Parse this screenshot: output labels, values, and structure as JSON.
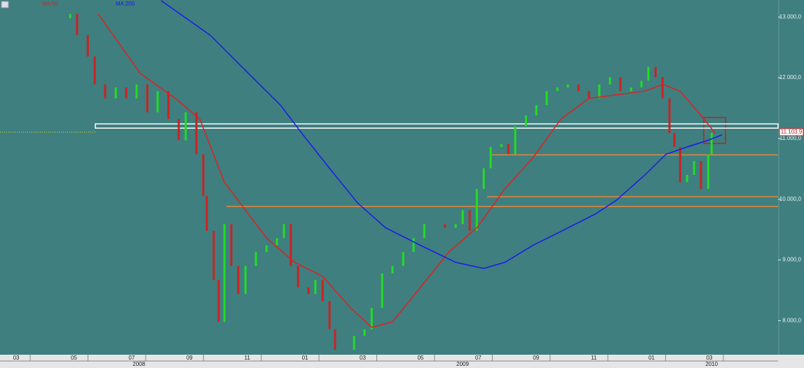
{
  "chart_data": {
    "type": "stock",
    "xlim": [
      1.44,
      28.38
    ],
    "ylim": [
      7440,
      13280
    ],
    "xticks": [
      {
        "value": 2,
        "label": "03"
      },
      {
        "value": 4,
        "label": "05"
      },
      {
        "value": 6,
        "label": "07"
      },
      {
        "value": 8,
        "label": "09"
      },
      {
        "value": 10,
        "label": "11"
      },
      {
        "value": 12,
        "label": "01"
      },
      {
        "value": 14,
        "label": "03"
      },
      {
        "value": 16,
        "label": "05"
      },
      {
        "value": 18,
        "label": "07"
      },
      {
        "value": 20,
        "label": "09"
      },
      {
        "value": 22,
        "label": "11"
      },
      {
        "value": 24,
        "label": "01"
      },
      {
        "value": 26,
        "label": "03"
      }
    ],
    "year_ticks": [
      {
        "value": 6.25,
        "label": "2008"
      },
      {
        "value": 17.46,
        "label": "2009"
      },
      {
        "value": 26.08,
        "label": "2010"
      }
    ],
    "yticks": [
      {
        "value": 8000,
        "label": "8.000,0"
      },
      {
        "value": 9000,
        "label": "9.000,0"
      },
      {
        "value": 10000,
        "label": "10.000,0"
      },
      {
        "value": 11000,
        "label": "11.000,0"
      },
      {
        "value": 12000,
        "label": "12.000,0"
      },
      {
        "value": 13000,
        "label": "13.000,0"
      }
    ],
    "price": {
      "up_color": "#22dd22",
      "down_color": "#cc2222",
      "x": [
        3.87,
        4.11,
        4.48,
        4.72,
        5.08,
        5.45,
        5.81,
        6.17,
        6.54,
        6.9,
        7.27,
        7.63,
        7.87,
        8.24,
        8.48,
        8.6,
        8.84,
        9.01,
        9.21,
        9.45,
        9.69,
        9.94,
        10.3,
        10.67,
        11.03,
        11.27,
        11.51,
        11.76,
        12.12,
        12.36,
        12.61,
        12.85,
        13.04,
        13.33,
        13.7,
        14.06,
        14.31,
        14.67,
        15.03,
        15.4,
        15.76,
        16.13,
        16.49,
        16.85,
        17.22,
        17.46,
        17.7,
        17.95,
        18.19,
        18.43,
        18.8,
        19.04,
        19.28,
        19.65,
        20.01,
        20.37,
        20.74,
        21.1,
        21.47,
        21.83,
        22.19,
        22.56,
        22.92,
        23.29,
        23.65,
        23.89,
        24.14,
        24.38,
        24.62,
        24.79,
        24.99,
        25.23,
        25.47,
        25.71,
        25.96,
        26.08,
        26.32
      ],
      "values": [
        13050,
        12700,
        12350,
        11890,
        11660,
        11840,
        11660,
        11890,
        11430,
        11780,
        11320,
        10970,
        11430,
        10740,
        10050,
        9480,
        8670,
        7980,
        9590,
        8900,
        8440,
        8900,
        9130,
        9240,
        9360,
        9590,
        8900,
        8550,
        8440,
        8670,
        8320,
        7860,
        7520,
        7520,
        7750,
        7860,
        8210,
        8780,
        8900,
        9130,
        9360,
        9590,
        9590,
        9530,
        9590,
        9820,
        9480,
        10170,
        10510,
        10860,
        10910,
        10740,
        11200,
        11380,
        11550,
        11780,
        11840,
        11890,
        11780,
        11660,
        11890,
        12010,
        11780,
        11840,
        11950,
        12180,
        12010,
        11660,
        11090,
        10860,
        10280,
        10400,
        10630,
        10170,
        10740,
        11090,
        11090
      ]
    },
    "series": [
      {
        "name": "MA 50",
        "color": "#e02020",
        "x": [
          4.84,
          6.3,
          7.51,
          8.36,
          9.21,
          10.67,
          11.64,
          12.61,
          13.58,
          14.31,
          15.03,
          16.0,
          16.98,
          17.95,
          18.92,
          19.89,
          20.86,
          21.83,
          22.8,
          23.77,
          24.38,
          24.99,
          25.71,
          26.2
        ],
        "values": [
          13050,
          12070,
          11660,
          11320,
          10280,
          9360,
          8960,
          8730,
          8210,
          7890,
          7980,
          8550,
          9130,
          9530,
          10170,
          10680,
          11320,
          11660,
          11720,
          11780,
          11890,
          11780,
          11380,
          11090
        ]
      },
      {
        "name": "MA 200",
        "color": "#1a1aee",
        "x": [
          7.02,
          8.72,
          9.94,
          11.15,
          11.88,
          12.85,
          13.82,
          14.79,
          16.0,
          17.22,
          18.19,
          18.92,
          19.89,
          20.86,
          22.07,
          22.8,
          23.77,
          24.5,
          25.23,
          25.96,
          26.44
        ],
        "values": [
          13270,
          12700,
          12120,
          11550,
          11090,
          10510,
          9940,
          9530,
          9240,
          8960,
          8860,
          8960,
          9240,
          9470,
          9760,
          9990,
          10400,
          10740,
          10860,
          10970,
          11060
        ]
      }
    ],
    "band": {
      "low": 11170,
      "high": 11240,
      "from": 4.74,
      "color": "#ffffff"
    },
    "levels": [
      {
        "value": 10730,
        "from": 18.43,
        "color": "#e8873a"
      },
      {
        "value": 10040,
        "from": 18.31,
        "color": "#e8873a"
      },
      {
        "value": 9880,
        "from": 9.28,
        "color": "#e8873a"
      }
    ],
    "last": {
      "value": 11103.9,
      "label": "11.103,9"
    }
  }
}
